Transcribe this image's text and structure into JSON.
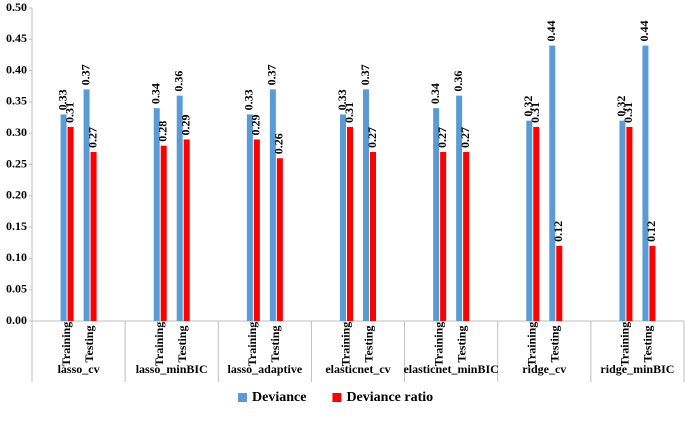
{
  "chart_data": {
    "type": "bar",
    "groups": [
      "lasso_cv",
      "lasso_minBIC",
      "lasso_adaptive",
      "elasticnet_cv",
      "elasticnet_minBIC",
      "ridge_cv",
      "ridge_minBIC"
    ],
    "categories": [
      "Training",
      "Testing",
      "Training",
      "Testing",
      "Training",
      "Testing",
      "Training",
      "Testing",
      "Training",
      "Testing",
      "Training",
      "Testing",
      "Training",
      "Testing"
    ],
    "series": [
      {
        "name": "Deviance",
        "color": "#5b9bd5",
        "values": [
          0.33,
          0.37,
          0.34,
          0.36,
          0.33,
          0.37,
          0.33,
          0.37,
          0.34,
          0.36,
          0.32,
          0.44,
          0.32,
          0.44
        ]
      },
      {
        "name": "Deviance ratio",
        "color": "#ff0000",
        "values": [
          0.31,
          0.27,
          0.28,
          0.29,
          0.29,
          0.26,
          0.31,
          0.27,
          0.27,
          0.27,
          0.31,
          0.12,
          0.31,
          0.12
        ]
      }
    ],
    "ylim": [
      0,
      0.5
    ],
    "yticks": [
      {
        "value": 0,
        "label": "0.00"
      },
      {
        "value": 0.05,
        "label": "0.05"
      },
      {
        "value": 0.1,
        "label": "0.10"
      },
      {
        "value": 0.15,
        "label": "0.15"
      },
      {
        "value": 0.2,
        "label": "0.20"
      },
      {
        "value": 0.25,
        "label": "0.25"
      },
      {
        "value": 0.3,
        "label": "0.30"
      },
      {
        "value": 0.35,
        "label": "0.35"
      },
      {
        "value": 0.4,
        "label": "0.40"
      },
      {
        "value": 0.45,
        "label": "0.45"
      },
      {
        "value": 0.5,
        "label": "0.50"
      }
    ],
    "legend": "bottom"
  }
}
